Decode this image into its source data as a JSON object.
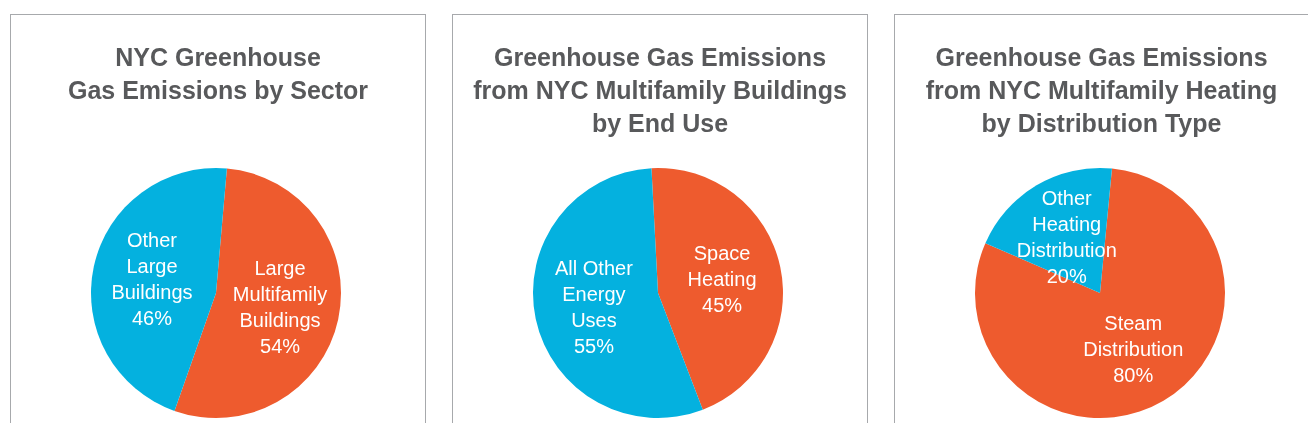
{
  "chart_data": [
    {
      "type": "pie",
      "title": "NYC Greenhouse\nGas Emissions by Sector",
      "categories": [
        "Large Multifamily Buildings",
        "Other Large Buildings"
      ],
      "values": [
        54,
        46
      ],
      "colors": [
        "#ee5b2e",
        "#04b1df"
      ],
      "value_labels": [
        "54%",
        "46%"
      ]
    },
    {
      "type": "pie",
      "title": "Greenhouse Gas Emissions\nfrom NYC Multifamily Buildings\nby End Use",
      "categories": [
        "Space Heating",
        "All Other Energy Uses"
      ],
      "values": [
        45,
        55
      ],
      "colors": [
        "#ee5b2e",
        "#04b1df"
      ],
      "value_labels": [
        "45%",
        "55%"
      ]
    },
    {
      "type": "pie",
      "title": "Greenhouse Gas Emissions\nfrom NYC Multifamily Heating\nby Distribution Type",
      "categories": [
        "Steam Distribution",
        "Other Heating Distribution"
      ],
      "values": [
        80,
        20
      ],
      "colors": [
        "#ee5b2e",
        "#04b1df"
      ],
      "value_labels": [
        "80%",
        "20%"
      ]
    }
  ]
}
